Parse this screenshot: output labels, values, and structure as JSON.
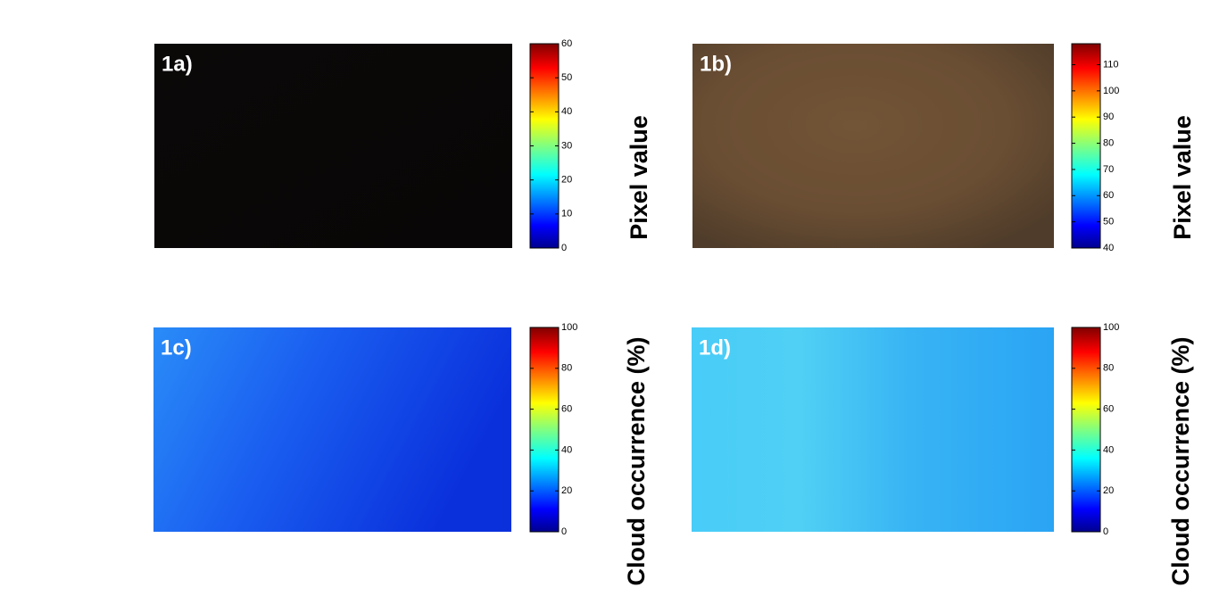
{
  "chart_data": [
    {
      "type": "image",
      "label": "1a)",
      "colormap": "jet",
      "colorbar_label": "Pixel value",
      "clim": [
        0,
        60
      ],
      "cticks": [
        0,
        10,
        20,
        30,
        40,
        50,
        60
      ]
    },
    {
      "type": "image",
      "label": "1b)",
      "colormap": "jet",
      "colorbar_label": "Pixel value",
      "clim": [
        40,
        118
      ],
      "cticks": [
        40,
        50,
        60,
        70,
        80,
        90,
        100,
        110
      ]
    },
    {
      "type": "image",
      "label": "1c)",
      "colormap": "jet",
      "colorbar_label": "Cloud occurrence (%)",
      "clim": [
        0,
        100
      ],
      "cticks": [
        0,
        20,
        40,
        60,
        80,
        100
      ]
    },
    {
      "type": "image",
      "label": "1d)",
      "colormap": "jet",
      "colorbar_label": "Cloud occurrence (%)",
      "clim": [
        0,
        100
      ],
      "cticks": [
        0,
        20,
        40,
        60,
        80,
        100
      ]
    }
  ]
}
